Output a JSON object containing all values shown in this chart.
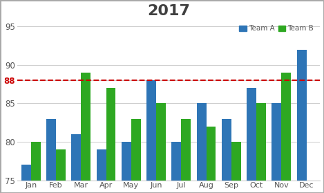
{
  "title": "2017",
  "months": [
    "Jan",
    "Feb",
    "Mar",
    "Apr",
    "May",
    "Jun",
    "Jul",
    "Aug",
    "Sep",
    "Oct",
    "Nov",
    "Dec"
  ],
  "team_a": [
    77,
    83,
    81,
    79,
    80,
    88,
    80,
    85,
    83,
    87,
    85,
    92
  ],
  "team_b": [
    80,
    79,
    89,
    87,
    83,
    85,
    83,
    82,
    80,
    85,
    89,
    null
  ],
  "team_a_color": "#2E75B6",
  "team_b_color": "#2EA822",
  "hline_y": 88,
  "hline_color": "#CC0000",
  "hline_label": "88",
  "ylim": [
    75,
    96
  ],
  "yticks": [
    75,
    80,
    85,
    90,
    95
  ],
  "ytick_extra": 88,
  "background_color": "#FFFFFF",
  "title_color": "#404040",
  "title_fontsize": 16,
  "legend_a_label": "Team A",
  "legend_b_label": "Team B",
  "bar_width": 0.38,
  "tick_color": "#555555",
  "grid_color": "#CCCCCC"
}
